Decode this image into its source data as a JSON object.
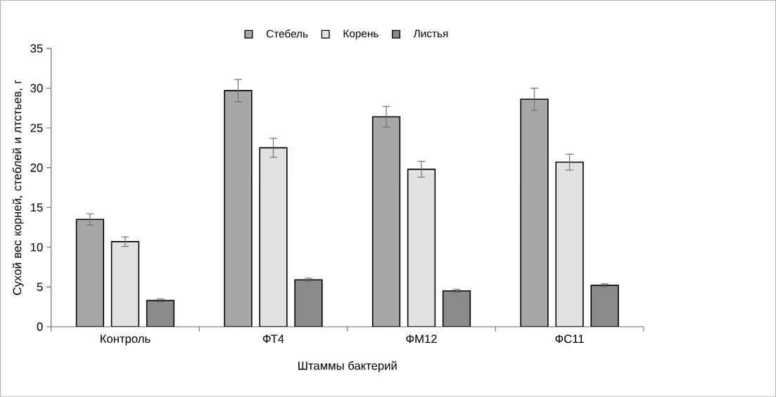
{
  "chart_data": {
    "type": "bar",
    "xlabel": "Штаммы бактерий",
    "ylabel": "Сухой вес корней, стеблей и лтстьев, г",
    "categories": [
      "Контроль",
      "ФТ4",
      "ФМ12",
      "ФС11"
    ],
    "series": [
      {
        "name": "Стебель",
        "color": "#a8a6a6",
        "values": [
          13.5,
          29.7,
          26.4,
          28.6
        ],
        "errors": [
          0.7,
          1.4,
          1.3,
          1.4
        ]
      },
      {
        "name": "Корень",
        "color": "#e2e2e2",
        "values": [
          10.7,
          22.5,
          19.8,
          20.7
        ],
        "errors": [
          0.6,
          1.2,
          1.0,
          1.0
        ]
      },
      {
        "name": "Листья",
        "color": "#8a8a8a",
        "values": [
          3.3,
          5.9,
          4.5,
          5.2
        ],
        "errors": [
          0.2,
          0.2,
          0.2,
          0.2
        ]
      }
    ],
    "ylim": [
      0,
      35
    ],
    "yticks": [
      0,
      5,
      10,
      15,
      20,
      25,
      30,
      35
    ],
    "legend": "top",
    "grid": false
  }
}
